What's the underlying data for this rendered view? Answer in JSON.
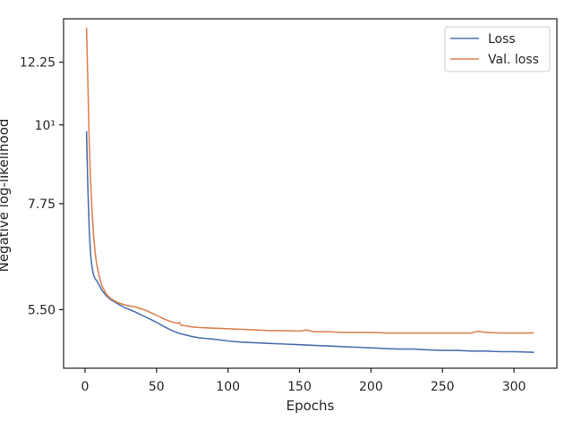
{
  "chart_data": {
    "type": "line",
    "title": "",
    "xlabel": "Epochs",
    "ylabel": "Negative log-likelihood",
    "yscale": "log",
    "xlim": [
      -15,
      330
    ],
    "ylim": [
      4.55,
      14.1
    ],
    "grid": false,
    "legend_position": "top-right",
    "x_ticks": [
      0,
      50,
      100,
      150,
      200,
      250,
      300
    ],
    "x_tick_labels": [
      "0",
      "50",
      "100",
      "150",
      "200",
      "250",
      "300"
    ],
    "y_ticks": [
      5.5,
      7.75,
      10,
      12.25
    ],
    "y_tick_labels": [
      "5.50",
      "7.75",
      "10¹",
      "12.25"
    ],
    "series": [
      {
        "name": "Loss",
        "color": "#4c72b0",
        "x": [
          1,
          2,
          3,
          4,
          5,
          6,
          7,
          8,
          10,
          12,
          15,
          18,
          22,
          26,
          30,
          35,
          40,
          45,
          50,
          55,
          60,
          65,
          70,
          75,
          80,
          90,
          100,
          110,
          120,
          130,
          140,
          150,
          160,
          170,
          180,
          190,
          200,
          210,
          220,
          230,
          240,
          250,
          260,
          270,
          280,
          290,
          300,
          314
        ],
        "y": [
          9.8,
          8.1,
          7.1,
          6.55,
          6.3,
          6.15,
          6.08,
          6.05,
          5.95,
          5.85,
          5.75,
          5.68,
          5.62,
          5.56,
          5.51,
          5.46,
          5.4,
          5.34,
          5.28,
          5.21,
          5.15,
          5.1,
          5.07,
          5.04,
          5.02,
          5.0,
          4.97,
          4.95,
          4.94,
          4.93,
          4.92,
          4.91,
          4.9,
          4.89,
          4.88,
          4.87,
          4.86,
          4.85,
          4.84,
          4.84,
          4.83,
          4.82,
          4.82,
          4.81,
          4.81,
          4.8,
          4.8,
          4.79
        ]
      },
      {
        "name": "Val. loss",
        "color": "#dd8452",
        "x": [
          1,
          2,
          3,
          4,
          5,
          6,
          7,
          8,
          10,
          12,
          15,
          18,
          22,
          26,
          30,
          35,
          40,
          45,
          50,
          55,
          60,
          65,
          66,
          67,
          70,
          75,
          80,
          90,
          100,
          110,
          120,
          130,
          140,
          150,
          155,
          160,
          170,
          180,
          190,
          200,
          210,
          220,
          230,
          240,
          250,
          260,
          270,
          275,
          280,
          290,
          300,
          314
        ],
        "y": [
          13.7,
          11.4,
          9.4,
          8.3,
          7.55,
          7.0,
          6.65,
          6.4,
          6.12,
          5.93,
          5.78,
          5.7,
          5.64,
          5.6,
          5.57,
          5.55,
          5.51,
          5.46,
          5.4,
          5.34,
          5.29,
          5.26,
          5.28,
          5.23,
          5.22,
          5.2,
          5.19,
          5.18,
          5.17,
          5.16,
          5.15,
          5.14,
          5.14,
          5.13,
          5.15,
          5.12,
          5.12,
          5.11,
          5.11,
          5.11,
          5.1,
          5.1,
          5.1,
          5.1,
          5.1,
          5.1,
          5.1,
          5.13,
          5.11,
          5.1,
          5.1,
          5.1
        ]
      }
    ]
  }
}
